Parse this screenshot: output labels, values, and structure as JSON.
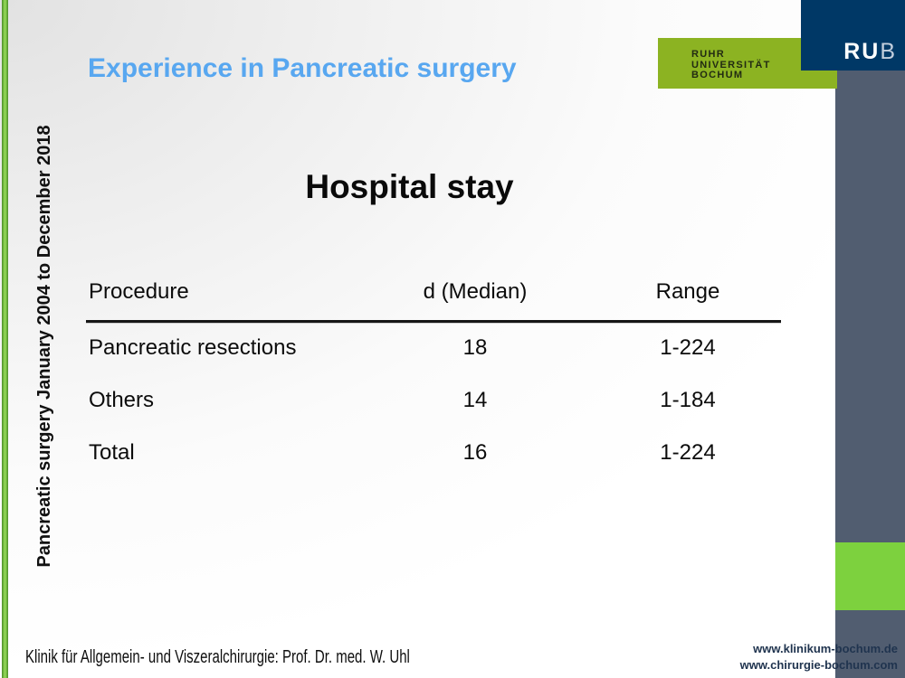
{
  "slide": {
    "title": "Experience in Pancreatic surgery",
    "heading": "Hospital stay",
    "sidebar_text": "Pancreatic surgery January 2004 to December 2018",
    "footer": "Klinik für Allgemein- und Viszeralchirurgie: Prof. Dr. med. W. Uhl"
  },
  "logo": {
    "university_lines": [
      "RUHR",
      "UNIVERSITÄT",
      "BOCHUM"
    ],
    "acronym_bold": "RU",
    "acronym_light": "B"
  },
  "links": {
    "line1": "www.klinikum-bochum.de",
    "line2": "www.chirurgie-bochum.com"
  },
  "table": {
    "headers": [
      "Procedure",
      "d (Median)",
      "Range"
    ],
    "rows": [
      {
        "procedure": "Pancreatic resections",
        "median": "18",
        "range": "1-224"
      },
      {
        "procedure": "Others",
        "median": "14",
        "range": "1-184"
      },
      {
        "procedure": "Total",
        "median": "16",
        "range": "1-224"
      }
    ]
  },
  "colors": {
    "title_blue": "#58a7f0",
    "logo_green": "#8cb322",
    "navy": "#003866",
    "gray_bar": "#515d70",
    "accent_green": "#7dd13e",
    "left_bar_green": "#79c043"
  }
}
